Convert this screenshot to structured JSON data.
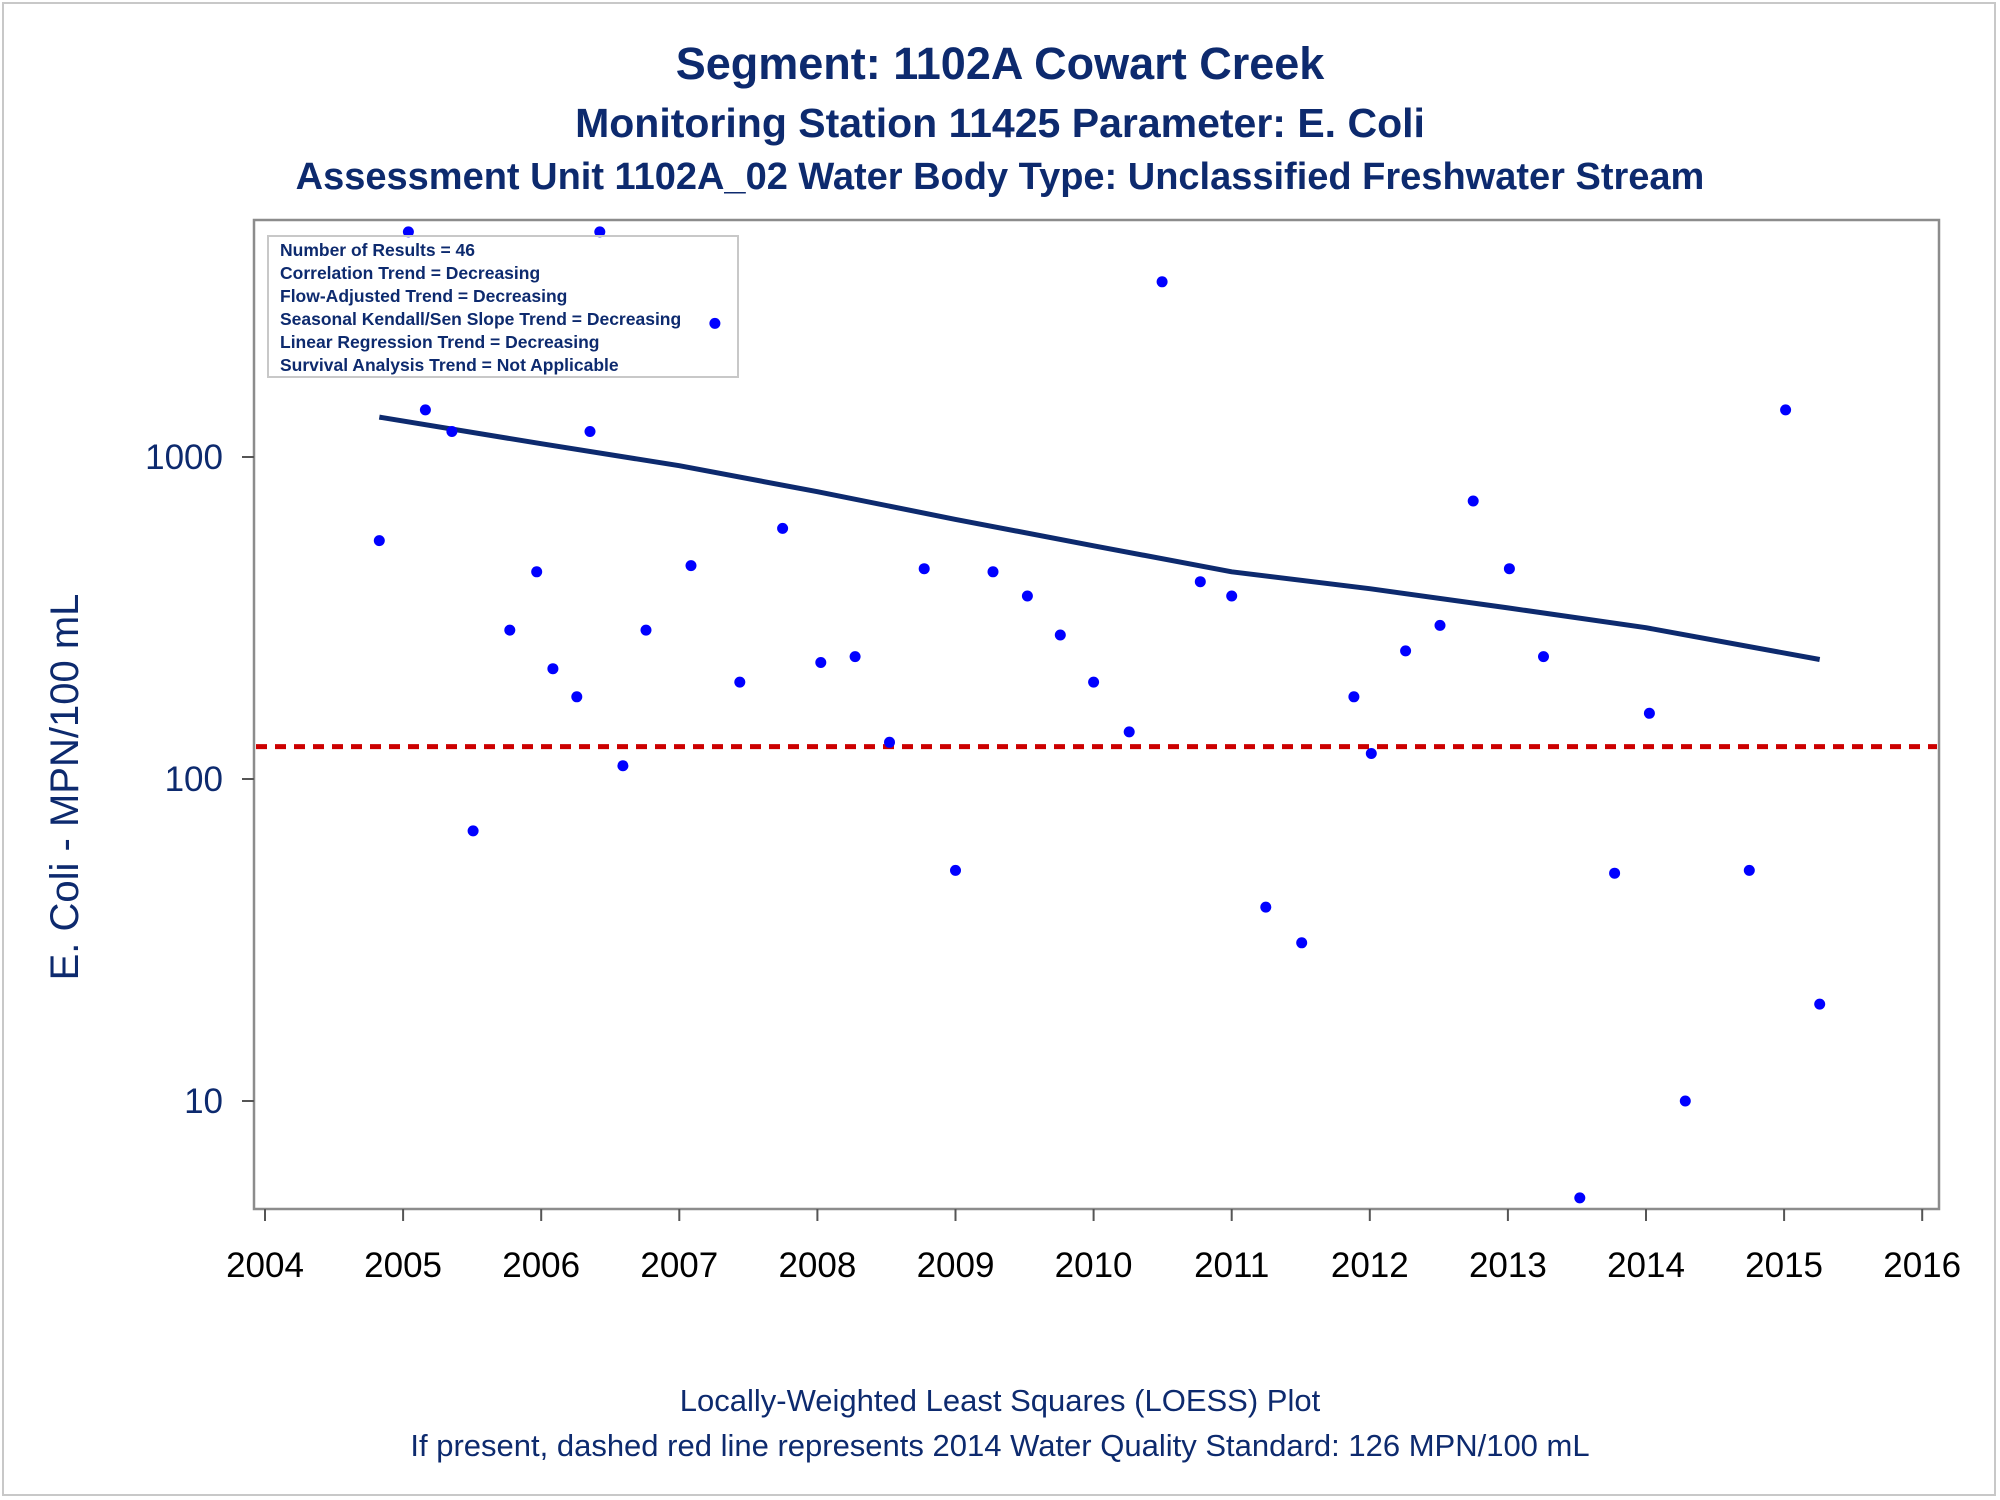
{
  "titles": {
    "line1": "Segment: 1102A  Cowart Creek",
    "line2": "Monitoring Station 11425 Parameter: E. Coli",
    "line3": "Assessment Unit 1102A_02   Water Body Type: Unclassified Freshwater Stream"
  },
  "footer": {
    "line1": "Locally-Weighted Least Squares (LOESS) Plot",
    "line2": "If present, dashed red line represents 2014 Water Quality Standard: 126 MPN/100 mL"
  },
  "chart_data": {
    "type": "scatter",
    "ylabel": "E. Coli - MPN/100 mL",
    "xlabel": "",
    "yscale": "log",
    "xlim": [
      2004,
      2016
    ],
    "ylim": [
      4.6,
      5000
    ],
    "xticks": [
      "2004",
      "2005",
      "2006",
      "2007",
      "2008",
      "2009",
      "2010",
      "2011",
      "2012",
      "2013",
      "2014",
      "2015",
      "2016"
    ],
    "yticks": [
      "10",
      "100",
      "1000"
    ],
    "grid": false,
    "colors": {
      "points": "#0000ff",
      "trend": "#0d2a6e",
      "standard": "#cc0000",
      "text": "#0d2a6e"
    },
    "legend_position": "top-left",
    "legend_entries": [
      "Number of Results = 46",
      "Correlation Trend = Decreasing",
      "Flow-Adjusted Trend = Decreasing",
      "Seasonal Kendall/Sen Slope Trend = Decreasing",
      "Linear Regression Trend = Decreasing",
      "Survival Analysis Trend = Not Applicable"
    ],
    "standard_value": 126,
    "points": [
      {
        "x": "2004-10-30",
        "y": 550
      },
      {
        "x": "2005-01-15",
        "y": 5000
      },
      {
        "x": "2005-03-01",
        "y": 1400
      },
      {
        "x": "2005-05-10",
        "y": 1200
      },
      {
        "x": "2005-07-05",
        "y": 69
      },
      {
        "x": "2005-10-10",
        "y": 290
      },
      {
        "x": "2005-12-20",
        "y": 440
      },
      {
        "x": "2006-02-01",
        "y": 220
      },
      {
        "x": "2006-04-05",
        "y": 180
      },
      {
        "x": "2006-05-10",
        "y": 1200
      },
      {
        "x": "2006-06-05",
        "y": 5000
      },
      {
        "x": "2006-08-05",
        "y": 110
      },
      {
        "x": "2006-10-05",
        "y": 290
      },
      {
        "x": "2007-02-01",
        "y": 460
      },
      {
        "x": "2007-04-05",
        "y": 2600
      },
      {
        "x": "2007-06-10",
        "y": 200
      },
      {
        "x": "2007-10-01",
        "y": 600
      },
      {
        "x": "2008-01-10",
        "y": 230
      },
      {
        "x": "2008-04-10",
        "y": 240
      },
      {
        "x": "2008-07-10",
        "y": 130
      },
      {
        "x": "2008-10-10",
        "y": 450
      },
      {
        "x": "2009-01-01",
        "y": 52
      },
      {
        "x": "2009-04-10",
        "y": 440
      },
      {
        "x": "2009-07-10",
        "y": 370
      },
      {
        "x": "2009-10-05",
        "y": 280
      },
      {
        "x": "2010-01-01",
        "y": 200
      },
      {
        "x": "2010-04-05",
        "y": 140
      },
      {
        "x": "2010-07-01",
        "y": 3500
      },
      {
        "x": "2010-10-10",
        "y": 410
      },
      {
        "x": "2011-01-01",
        "y": 370
      },
      {
        "x": "2011-04-01",
        "y": 40
      },
      {
        "x": "2011-07-05",
        "y": 31
      },
      {
        "x": "2011-11-20",
        "y": 180
      },
      {
        "x": "2012-01-05",
        "y": 120
      },
      {
        "x": "2012-04-05",
        "y": 250
      },
      {
        "x": "2012-07-05",
        "y": 300
      },
      {
        "x": "2012-10-01",
        "y": 730
      },
      {
        "x": "2013-01-05",
        "y": 450
      },
      {
        "x": "2013-04-05",
        "y": 240
      },
      {
        "x": "2013-07-10",
        "y": 5
      },
      {
        "x": "2013-10-10",
        "y": 51
      },
      {
        "x": "2014-01-10",
        "y": 160
      },
      {
        "x": "2014-04-15",
        "y": 10
      },
      {
        "x": "2014-10-01",
        "y": 52
      },
      {
        "x": "2015-01-05",
        "y": 1400
      },
      {
        "x": "2015-04-05",
        "y": 20
      }
    ],
    "trend": [
      {
        "x": "2004-10-30",
        "y": 1330
      },
      {
        "x": "2006-01-01",
        "y": 1100
      },
      {
        "x": "2007-01-01",
        "y": 940
      },
      {
        "x": "2008-01-01",
        "y": 780
      },
      {
        "x": "2009-01-01",
        "y": 640
      },
      {
        "x": "2010-01-01",
        "y": 530
      },
      {
        "x": "2011-01-01",
        "y": 440
      },
      {
        "x": "2012-01-01",
        "y": 390
      },
      {
        "x": "2013-01-01",
        "y": 340
      },
      {
        "x": "2014-01-01",
        "y": 295
      },
      {
        "x": "2015-04-05",
        "y": 235
      }
    ]
  }
}
